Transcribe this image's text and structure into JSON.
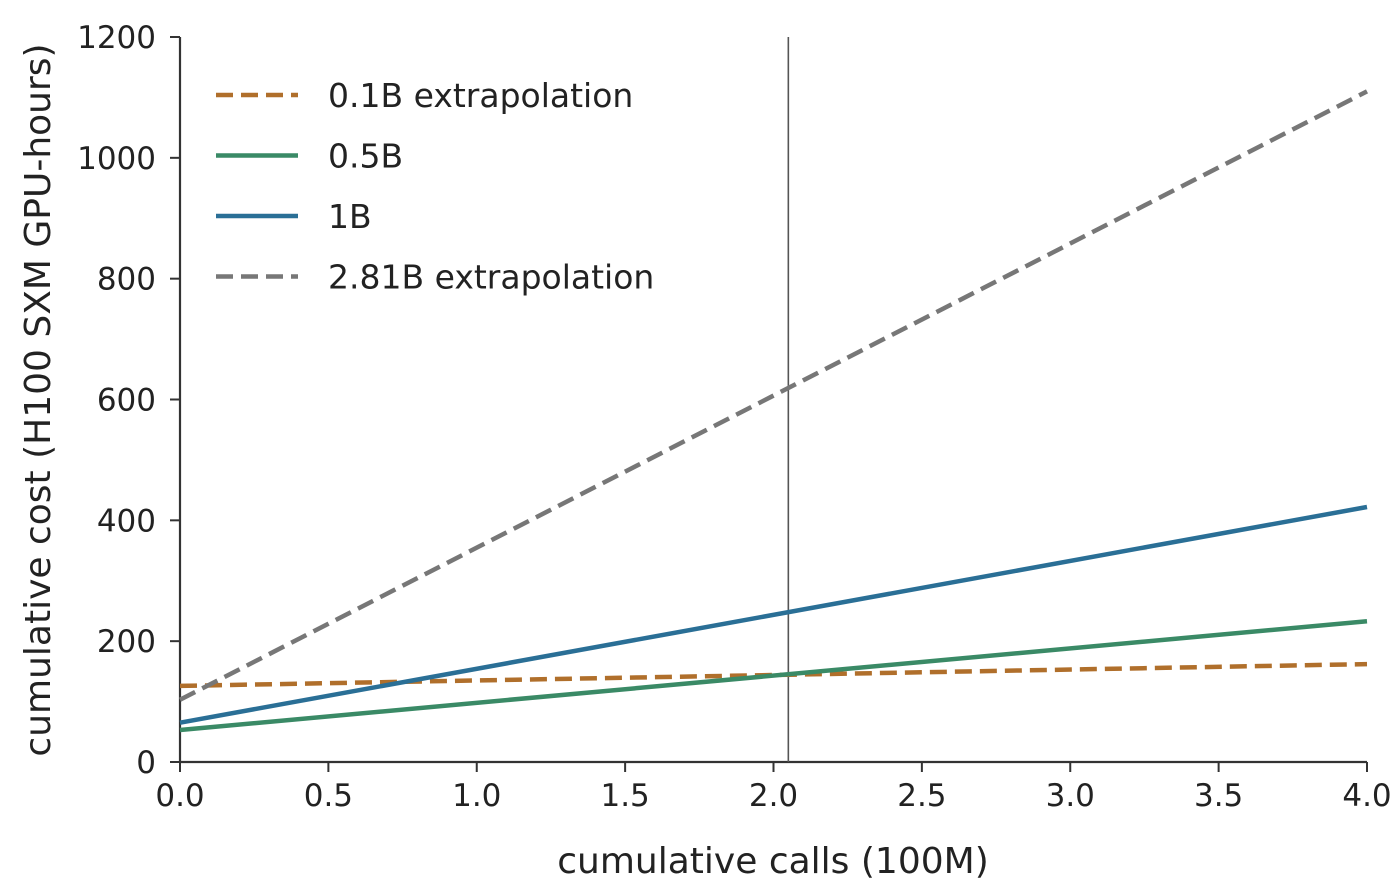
{
  "chart_data": {
    "type": "line",
    "xlabel": "cumulative calls (100M)",
    "ylabel": "cumulative cost (H100 SXM GPU-hours)",
    "xlim": [
      0.0,
      4.0
    ],
    "ylim": [
      0,
      1200
    ],
    "x_ticks": [
      0.0,
      0.5,
      1.0,
      1.5,
      2.0,
      2.5,
      3.0,
      3.5,
      4.0
    ],
    "x_tick_labels": [
      "0.0",
      "0.5",
      "1.0",
      "1.5",
      "2.0",
      "2.5",
      "3.0",
      "3.5",
      "4.0"
    ],
    "y_ticks": [
      0,
      200,
      400,
      600,
      800,
      1000,
      1200
    ],
    "y_tick_labels": [
      "0",
      "200",
      "400",
      "600",
      "800",
      "1000",
      "1200"
    ],
    "grid": false,
    "legend_position": "top-left",
    "vertical_reference_line": {
      "x": 2.05,
      "color": "#555555"
    },
    "series": [
      {
        "name": "0.1B extrapolation",
        "color": "#B06F2B",
        "dashed": true,
        "x": [
          0.0,
          4.0
        ],
        "y": [
          126,
          162
        ]
      },
      {
        "name": "0.5B",
        "color": "#3A8A66",
        "dashed": false,
        "x": [
          0.0,
          4.0
        ],
        "y": [
          53,
          233
        ]
      },
      {
        "name": "1B",
        "color": "#2A6F96",
        "dashed": false,
        "x": [
          0.0,
          4.0
        ],
        "y": [
          65,
          422
        ]
      },
      {
        "name": "2.81B extrapolation",
        "color": "#777777",
        "dashed": true,
        "x": [
          0.0,
          4.0
        ],
        "y": [
          103,
          1110
        ]
      }
    ]
  }
}
